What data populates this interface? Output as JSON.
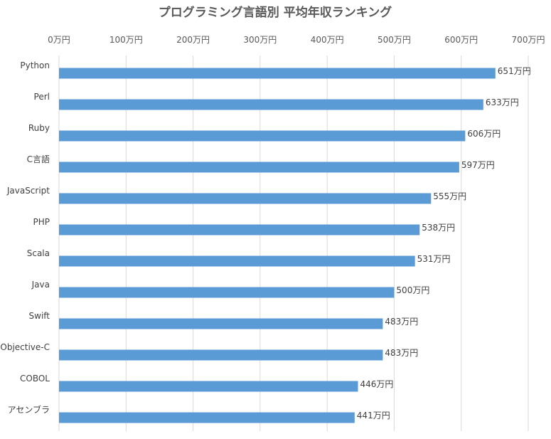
{
  "chart_data": {
    "type": "bar",
    "orientation": "horizontal",
    "title": "プログラミング言語別 平均年収ランキング",
    "xlabel": "",
    "ylabel": "",
    "unit": "万円",
    "xlim": [
      0,
      700
    ],
    "x_ticks": [
      0,
      100,
      200,
      300,
      400,
      500,
      600,
      700
    ],
    "x_tick_labels": [
      "0万円",
      "100万円",
      "200万円",
      "300万円",
      "400万円",
      "500万円",
      "600万円",
      "700万円"
    ],
    "x_axis_position": "top",
    "grid": true,
    "bar_color": "#5b9bd5",
    "categories": [
      "Python",
      "Perl",
      "Ruby",
      "C言語",
      "JavaScript",
      "PHP",
      "Scala",
      "Java",
      "Swift",
      "Objective-C",
      "COBOL",
      "アセンブラ"
    ],
    "values": [
      651,
      633,
      606,
      597,
      555,
      538,
      531,
      500,
      483,
      483,
      446,
      441
    ],
    "data_labels": [
      "651万円",
      "633万円",
      "606万円",
      "597万円",
      "555万円",
      "538万円",
      "531万円",
      "500万円",
      "483万円",
      "483万円",
      "446万円",
      "441万円"
    ]
  }
}
